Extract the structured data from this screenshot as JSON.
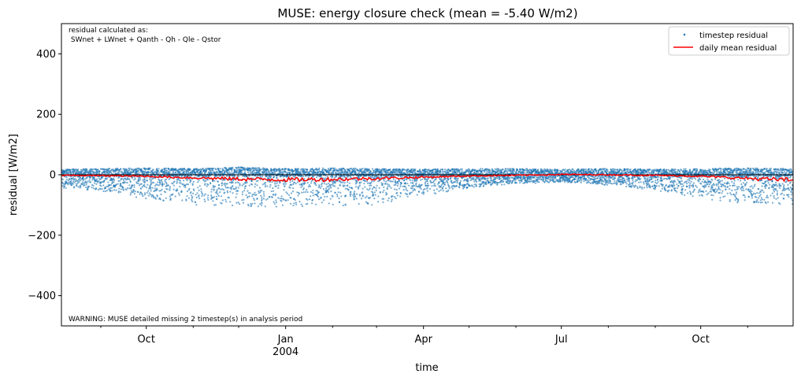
{
  "chart_data": {
    "type": "scatter",
    "title": "MUSE: energy closure check (mean = -5.40 W/m2)",
    "xlabel": "time",
    "ylabel": "residual [W/m2]",
    "xlim": [
      "2003-08-06",
      "2004-12-01"
    ],
    "ylim": [
      -500,
      500
    ],
    "y_ticks": [
      400,
      200,
      0,
      -200,
      -400
    ],
    "y_tick_labels": [
      "400",
      "200",
      "0",
      "−200",
      "−400"
    ],
    "x_ticks": [
      {
        "date": "2003-10-01",
        "label": "Oct",
        "sublabel": ""
      },
      {
        "date": "2004-01-01",
        "label": "Jan",
        "sublabel": "2004"
      },
      {
        "date": "2004-04-01",
        "label": "Apr",
        "sublabel": ""
      },
      {
        "date": "2004-07-01",
        "label": "Jul",
        "sublabel": ""
      },
      {
        "date": "2004-10-01",
        "label": "Oct",
        "sublabel": ""
      }
    ],
    "x_minor_ticks": [
      "2003-09-01",
      "2003-11-01",
      "2003-12-01",
      "2004-02-01",
      "2004-03-01",
      "2004-05-01",
      "2004-06-01",
      "2004-08-01",
      "2004-09-01",
      "2004-11-01"
    ],
    "zero_line": 0,
    "grid": false,
    "legend_position": "top-right",
    "annotations": {
      "formula_line1": "residual calculated as:",
      "formula_line2": " SWnet + LWnet + Qanth - Qh - Qle - Qstor",
      "warning": "WARNING: MUSE detailed missing 2 timestep(s) in analysis period"
    },
    "series": [
      {
        "name": "timestep residual",
        "kind": "scatter",
        "color": "#1f77b4",
        "envelope": {
          "x": [
            "2003-08-06",
            "2003-09-01",
            "2003-10-01",
            "2003-11-01",
            "2003-12-01",
            "2004-01-01",
            "2004-02-01",
            "2004-03-01",
            "2004-04-01",
            "2004-05-01",
            "2004-06-01",
            "2004-07-01",
            "2004-08-01",
            "2004-09-01",
            "2004-10-01",
            "2004-11-01",
            "2004-12-01"
          ],
          "upper": [
            18,
            20,
            22,
            20,
            25,
            20,
            22,
            20,
            18,
            20,
            20,
            18,
            20,
            18,
            20,
            22,
            20
          ],
          "lower": [
            -45,
            -55,
            -80,
            -100,
            -105,
            -110,
            -105,
            -100,
            -70,
            -45,
            -30,
            -25,
            -35,
            -55,
            -80,
            -95,
            -100
          ]
        }
      },
      {
        "name": "daily mean residual",
        "kind": "line",
        "color": "#ff0000",
        "x": [
          "2003-08-06",
          "2003-09-01",
          "2003-10-01",
          "2003-11-01",
          "2003-12-01",
          "2004-01-01",
          "2004-02-01",
          "2004-03-01",
          "2004-04-01",
          "2004-05-01",
          "2004-06-01",
          "2004-07-01",
          "2004-08-01",
          "2004-09-01",
          "2004-10-01",
          "2004-11-01",
          "2004-12-01"
        ],
        "y": [
          -2,
          -3,
          -5,
          -10,
          -14,
          -16,
          -15,
          -12,
          -8,
          -4,
          -2,
          1,
          0,
          -2,
          -5,
          -12,
          -18
        ]
      }
    ]
  }
}
